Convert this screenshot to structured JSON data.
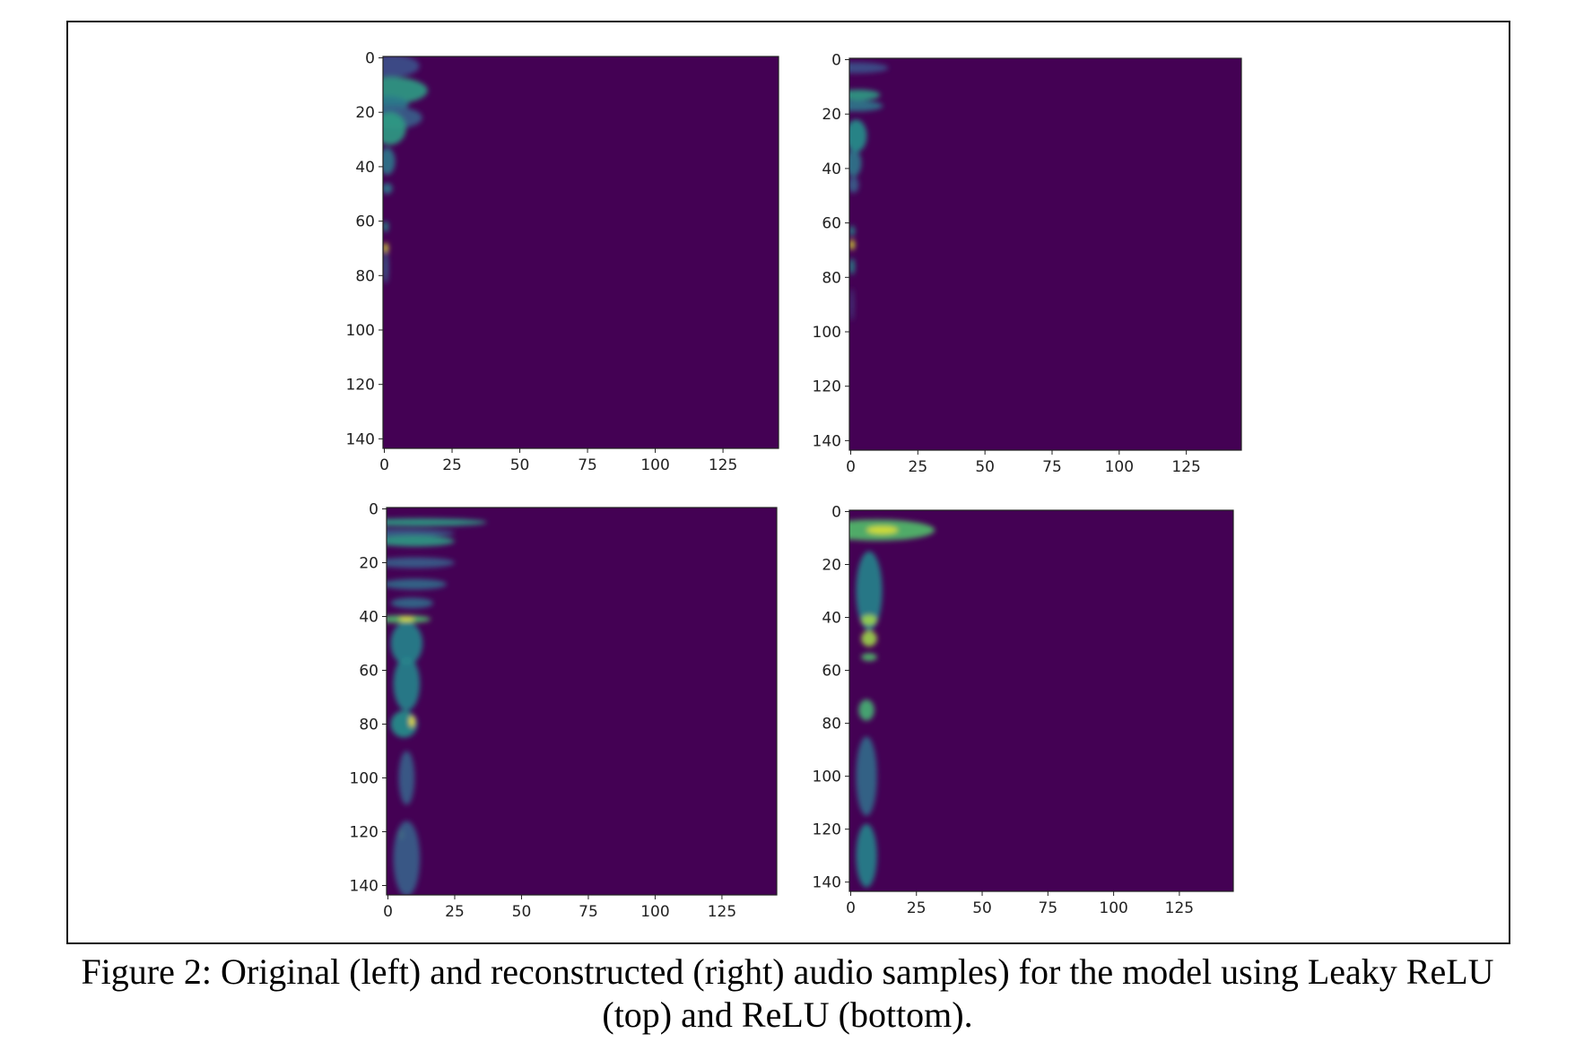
{
  "caption": {
    "line1": "Figure 2: Original (left) and reconstructed (right) audio samples) for the model using Leaky ReLU",
    "line2": "(top) and ReLU (bottom)."
  },
  "chart_data": [
    {
      "type": "heatmap",
      "colormap": "viridis",
      "xlim": [
        -0.5,
        145.5
      ],
      "ylim": [
        143.5,
        -0.5
      ],
      "xticks": [
        "0",
        "25",
        "50",
        "75",
        "100",
        "125"
      ],
      "yticks": [
        "0",
        "20",
        "40",
        "60",
        "80",
        "100",
        "120",
        "140"
      ],
      "hotspots_note_fields": [
        "col",
        "row",
        "col_spread",
        "row_spread",
        "intensity"
      ],
      "hotspots": [
        [
          3,
          3,
          10,
          4,
          0.25
        ],
        [
          2,
          12,
          14,
          5,
          0.55
        ],
        [
          1,
          17,
          8,
          3,
          0.4
        ],
        [
          4,
          22,
          10,
          4,
          0.3
        ],
        [
          2,
          26,
          6,
          6,
          0.55
        ],
        [
          1,
          38,
          3,
          5,
          0.4
        ],
        [
          1,
          48,
          2,
          2,
          0.4
        ],
        [
          0.5,
          62,
          1,
          2,
          0.5
        ],
        [
          0.5,
          70,
          1,
          2,
          0.95
        ],
        [
          0.5,
          77,
          1,
          6,
          0.3
        ]
      ]
    },
    {
      "type": "heatmap",
      "colormap": "viridis",
      "xlim": [
        -0.5,
        145.5
      ],
      "ylim": [
        143.5,
        -0.5
      ],
      "xticks": [
        "0",
        "25",
        "50",
        "75",
        "100",
        "125"
      ],
      "yticks": [
        "0",
        "20",
        "40",
        "60",
        "80",
        "100",
        "120",
        "140"
      ],
      "hotspots": [
        [
          2,
          3,
          12,
          2,
          0.25
        ],
        [
          3,
          13,
          8,
          2,
          0.55
        ],
        [
          2,
          17,
          10,
          2,
          0.4
        ],
        [
          2,
          28,
          4,
          6,
          0.5
        ],
        [
          1,
          38,
          3,
          5,
          0.4
        ],
        [
          1,
          46,
          2,
          3,
          0.3
        ],
        [
          0.5,
          63,
          1,
          2,
          0.5
        ],
        [
          0.5,
          68,
          1,
          2,
          0.95
        ],
        [
          0.5,
          76,
          1,
          3,
          0.5
        ],
        [
          0.5,
          90,
          0.5,
          6,
          0.2
        ]
      ]
    },
    {
      "type": "heatmap",
      "colormap": "viridis",
      "xlim": [
        -0.5,
        145.5
      ],
      "ylim": [
        143.5,
        -0.5
      ],
      "xticks": [
        "0",
        "25",
        "50",
        "75",
        "100",
        "125"
      ],
      "yticks": [
        "0",
        "20",
        "40",
        "60",
        "80",
        "100",
        "120",
        "140"
      ],
      "hotspots": [
        [
          5,
          9,
          20,
          1.5,
          0.3
        ],
        [
          12,
          5,
          25,
          1.5,
          0.55
        ],
        [
          10,
          12,
          15,
          2,
          0.55
        ],
        [
          10,
          20,
          15,
          2,
          0.3
        ],
        [
          10,
          28,
          12,
          2,
          0.35
        ],
        [
          9,
          35,
          8,
          2,
          0.35
        ],
        [
          6,
          41,
          10,
          1.5,
          0.7
        ],
        [
          7,
          41,
          3,
          0.7,
          1.0
        ],
        [
          7,
          50,
          6,
          8,
          0.45
        ],
        [
          7,
          65,
          5,
          10,
          0.45
        ],
        [
          6,
          80,
          5,
          5,
          0.5
        ],
        [
          9,
          79,
          1,
          2,
          1.0
        ],
        [
          7,
          100,
          3,
          10,
          0.3
        ],
        [
          5,
          121,
          1,
          2,
          0.85
        ],
        [
          7,
          130,
          5,
          14,
          0.3
        ]
      ]
    },
    {
      "type": "heatmap",
      "colormap": "viridis",
      "xlim": [
        -0.5,
        145.5
      ],
      "ylim": [
        143.5,
        -0.5
      ],
      "xticks": [
        "0",
        "25",
        "50",
        "75",
        "100",
        "125"
      ],
      "yticks": [
        "0",
        "20",
        "40",
        "60",
        "80",
        "100",
        "120",
        "140"
      ],
      "hotspots": [
        [
          10,
          7,
          22,
          4,
          0.7
        ],
        [
          12,
          7,
          6,
          1.5,
          0.95
        ],
        [
          7,
          30,
          5,
          15,
          0.45
        ],
        [
          7,
          41,
          3,
          2,
          0.85
        ],
        [
          7,
          48,
          3,
          3,
          0.85
        ],
        [
          7,
          55,
          3,
          1.5,
          0.7
        ],
        [
          6,
          75,
          3,
          4,
          0.65
        ],
        [
          6,
          100,
          4,
          15,
          0.35
        ],
        [
          6,
          130,
          4,
          12,
          0.45
        ]
      ]
    }
  ]
}
